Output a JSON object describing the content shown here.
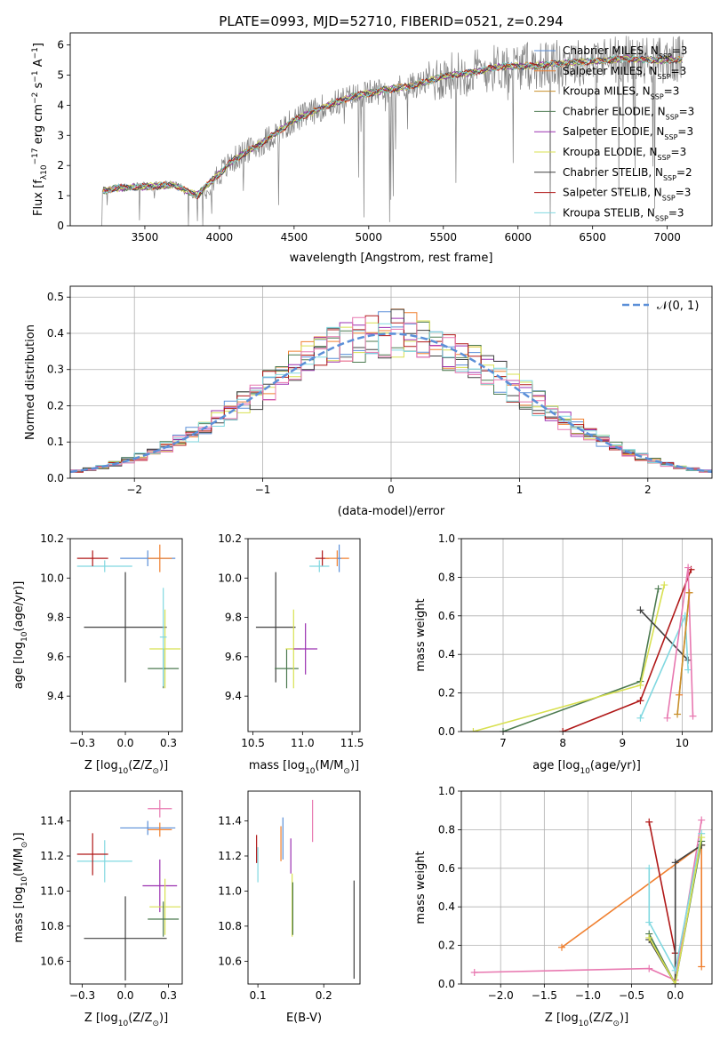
{
  "figure": {
    "title": "PLATE=0993, MJD=52710, FIBERID=0521, z=0.294"
  },
  "chart_data": [
    {
      "id": "spectrum",
      "type": "line",
      "xlabel": "wavelength [Angstrom, rest frame]",
      "ylabel": "Flux [f",
      "ylabel_parts": [
        "Flux [f",
        "λ",
        "10",
        "−17",
        " erg cm",
        "−2",
        " s",
        "−1",
        " A",
        "−1",
        "]"
      ],
      "xlim": [
        3000,
        7300
      ],
      "ylim": [
        0,
        6.4
      ],
      "xticks": [
        3500,
        4000,
        4500,
        5000,
        5500,
        6000,
        6500,
        7000
      ],
      "yticks": [
        0,
        1,
        2,
        3,
        4,
        5,
        6
      ],
      "observed_color": "#808080",
      "continuum_anchor": {
        "x": [
          3220,
          3300,
          3500,
          3700,
          3850,
          3950,
          4100,
          4300,
          4500,
          4700,
          4900,
          5100,
          5300,
          5500,
          5700,
          5900,
          6100,
          6300,
          6500,
          6700,
          6900,
          7100
        ],
        "y": [
          1.15,
          1.25,
          1.3,
          1.35,
          1.0,
          1.5,
          2.2,
          2.8,
          3.5,
          3.95,
          4.3,
          4.5,
          4.65,
          4.95,
          5.1,
          5.3,
          5.3,
          5.4,
          5.45,
          5.55,
          5.5,
          5.5
        ]
      },
      "series": [
        {
          "name": "Chabrier MILES",
          "nssp": "3",
          "color": "#5b8fd8"
        },
        {
          "name": "Salpeter MILES",
          "nssp": "3",
          "color": "#f08030"
        },
        {
          "name": "Kroupa MILES",
          "nssp": "3",
          "color": "#c8902c"
        },
        {
          "name": "Chabrier ELODIE",
          "nssp": "3",
          "color": "#4c7a50"
        },
        {
          "name": "Salpeter ELODIE",
          "nssp": "3",
          "color": "#9b30b0"
        },
        {
          "name": "Kroupa ELODIE",
          "nssp": "3",
          "color": "#d8e050"
        },
        {
          "name": "Chabrier STELIB",
          "nssp": "2",
          "color": "#404040"
        },
        {
          "name": "Salpeter STELIB",
          "nssp": "3",
          "color": "#b01818"
        },
        {
          "name": "Kroupa STELIB",
          "nssp": "3",
          "color": "#80d8e0"
        }
      ],
      "legend_loc": "lower-right"
    },
    {
      "id": "residuals",
      "type": "line",
      "xlabel": "(data-model)/error",
      "ylabel": "Normed distribution",
      "xlim": [
        -2.5,
        2.5
      ],
      "ylim": [
        0,
        0.53
      ],
      "xticks": [
        -2,
        -1,
        0,
        1,
        2
      ],
      "yticks": [
        0,
        0.1,
        0.2,
        0.3,
        0.4,
        0.5
      ],
      "grid": true,
      "legend_label": "𝒩(0, 1)",
      "legend_loc": "upper-right",
      "gaussian_color": "#5b8fd8",
      "hist_colors": [
        "#5b8fd8",
        "#f08030",
        "#4c7a50",
        "#9b30b0",
        "#d8e050",
        "#404040",
        "#b01818",
        "#80d8e0",
        "#e878b0"
      ]
    },
    {
      "id": "z-age",
      "type": "scatter",
      "xlabel": "Z [log",
      "xlabel_parts": [
        "Z [log",
        "10",
        "(Z/Z",
        "⊙",
        ")]"
      ],
      "ylabel_parts": [
        "age  [log",
        "10",
        "(age/yr)]"
      ],
      "xlim": [
        -0.32,
        0.33
      ],
      "ylim": [
        9.22,
        10.2
      ],
      "xticks": [
        -0.25,
        0.0,
        0.25
      ],
      "yticks": [
        9.4,
        9.6,
        9.8,
        10.0,
        10.2
      ],
      "points": [
        {
          "x": -0.12,
          "xerr": 0.16,
          "y": 10.06,
          "yerr": 0.03,
          "color": "#80d8e0"
        },
        {
          "x": -0.19,
          "xerr": 0.09,
          "y": 10.1,
          "yerr": 0.04,
          "color": "#b01818"
        },
        {
          "x": 0.13,
          "xerr": 0.16,
          "y": 10.1,
          "yerr": 0.04,
          "color": "#5b8fd8"
        },
        {
          "x": 0.2,
          "xerr": 0.07,
          "y": 10.1,
          "yerr": 0.07,
          "color": "#f08030"
        },
        {
          "x": 0.0,
          "xerr": 0.24,
          "y": 9.75,
          "yerr": 0.28,
          "color": "#404040"
        },
        {
          "x": 0.23,
          "xerr": 0.09,
          "y": 9.64,
          "yerr": 0.2,
          "color": "#d8e050"
        },
        {
          "x": 0.22,
          "xerr": 0.09,
          "y": 9.54,
          "yerr": 0.1,
          "color": "#4c7a50"
        },
        {
          "x": 0.22,
          "xerr": 0.02,
          "y": 9.7,
          "yerr": 0.25,
          "color": "#80d8e0"
        }
      ]
    },
    {
      "id": "mass-age",
      "type": "scatter",
      "xlabel_parts": [
        "mass [log",
        "10",
        "(M/M",
        "⊙",
        ")]"
      ],
      "xlim": [
        10.45,
        11.58
      ],
      "ylim": [
        9.22,
        10.2
      ],
      "xticks": [
        10.5,
        11.0,
        11.5
      ],
      "yticks": [
        9.4,
        9.6,
        9.8,
        10.0,
        10.2
      ],
      "points": [
        {
          "x": 10.73,
          "xerr": 0.2,
          "y": 9.75,
          "yerr": 0.28,
          "color": "#404040"
        },
        {
          "x": 10.84,
          "xerr": 0.12,
          "y": 9.54,
          "yerr": 0.1,
          "color": "#4c7a50"
        },
        {
          "x": 10.91,
          "xerr": 0.08,
          "y": 9.64,
          "yerr": 0.2,
          "color": "#d8e050"
        },
        {
          "x": 11.03,
          "xerr": 0.12,
          "y": 9.64,
          "yerr": 0.13,
          "color": "#9b30b0"
        },
        {
          "x": 11.2,
          "xerr": 0.07,
          "y": 10.1,
          "yerr": 0.04,
          "color": "#b01818"
        },
        {
          "x": 11.35,
          "xerr": 0.12,
          "y": 10.1,
          "yerr": 0.04,
          "color": "#f08030"
        },
        {
          "x": 11.37,
          "xerr": 0.02,
          "y": 10.1,
          "yerr": 0.07,
          "color": "#5b8fd8"
        },
        {
          "x": 11.17,
          "xerr": 0.1,
          "y": 10.06,
          "yerr": 0.03,
          "color": "#80d8e0"
        }
      ]
    },
    {
      "id": "age-massweight",
      "type": "line",
      "xlabel_parts": [
        "age  [log",
        "10",
        "(age/yr)]"
      ],
      "ylabel": "mass weight",
      "xlim": [
        6.3,
        10.5
      ],
      "ylim": [
        0,
        1.0
      ],
      "xticks": [
        7,
        8,
        9,
        10
      ],
      "yticks": [
        0.0,
        0.2,
        0.4,
        0.6,
        0.8,
        1.0
      ],
      "grid": true,
      "series": [
        {
          "color": "#4c7a50",
          "x": [
            7.0,
            9.3,
            9.6
          ],
          "y": [
            0.0,
            0.26,
            0.74
          ]
        },
        {
          "color": "#d8e050",
          "x": [
            6.5,
            9.3,
            9.7
          ],
          "y": [
            0.0,
            0.24,
            0.76
          ]
        },
        {
          "color": "#404040",
          "x": [
            9.3,
            10.1
          ],
          "y": [
            0.63,
            0.37
          ]
        },
        {
          "color": "#b01818",
          "x": [
            8.0,
            9.3,
            10.15
          ],
          "y": [
            0.0,
            0.16,
            0.84
          ]
        },
        {
          "color": "#80d8e0",
          "x": [
            9.3,
            10.05,
            10.1
          ],
          "y": [
            0.07,
            0.6,
            0.32
          ]
        },
        {
          "color": "#e878b0",
          "x": [
            9.75,
            10.1,
            10.18
          ],
          "y": [
            0.07,
            0.85,
            0.08
          ]
        },
        {
          "color": "#f08030",
          "x": [
            9.95,
            10.12
          ],
          "y": [
            0.19,
            0.72
          ]
        },
        {
          "color": "#c8902c",
          "x": [
            9.92,
            10.12
          ],
          "y": [
            0.09,
            0.72
          ]
        }
      ]
    },
    {
      "id": "z-mass",
      "type": "scatter",
      "xlabel_parts": [
        "Z [log",
        "10",
        "(Z/Z",
        "⊙",
        ")]"
      ],
      "ylabel_parts": [
        "mass [log",
        "10",
        "(M/M",
        "⊙",
        ")]"
      ],
      "xlim": [
        -0.32,
        0.33
      ],
      "ylim": [
        10.47,
        11.57
      ],
      "xticks": [
        -0.25,
        0.0,
        0.25
      ],
      "yticks": [
        10.6,
        10.8,
        11.0,
        11.2,
        11.4
      ],
      "points": [
        {
          "x": -0.12,
          "xerr": 0.16,
          "y": 11.17,
          "yerr": 0.12,
          "color": "#80d8e0"
        },
        {
          "x": -0.19,
          "xerr": 0.09,
          "y": 11.21,
          "yerr": 0.12,
          "color": "#b01818"
        },
        {
          "x": 0.0,
          "xerr": 0.24,
          "y": 10.73,
          "yerr": 0.24,
          "color": "#404040"
        },
        {
          "x": 0.13,
          "xerr": 0.16,
          "y": 11.36,
          "yerr": 0.04,
          "color": "#5b8fd8"
        },
        {
          "x": 0.2,
          "xerr": 0.07,
          "y": 11.35,
          "yerr": 0.04,
          "color": "#f08030"
        },
        {
          "x": 0.2,
          "xerr": 0.07,
          "y": 11.47,
          "yerr": 0.05,
          "color": "#e878b0"
        },
        {
          "x": 0.2,
          "xerr": 0.1,
          "y": 11.03,
          "yerr": 0.15,
          "color": "#9b30b0"
        },
        {
          "x": 0.23,
          "xerr": 0.09,
          "y": 10.91,
          "yerr": 0.16,
          "color": "#d8e050"
        },
        {
          "x": 0.22,
          "xerr": 0.09,
          "y": 10.84,
          "yerr": 0.1,
          "color": "#4c7a50"
        }
      ]
    },
    {
      "id": "ebv-mass",
      "type": "scatter",
      "xlabel": "E(B-V)",
      "xlim": [
        0.085,
        0.255
      ],
      "ylim": [
        10.47,
        11.57
      ],
      "xticks": [
        0.1,
        0.2
      ],
      "yticks": [
        10.6,
        10.8,
        11.0,
        11.2,
        11.4
      ],
      "points": [
        {
          "x": 0.098,
          "xerr": 0.0,
          "y": 11.24,
          "yerr": 0.08,
          "color": "#b01818"
        },
        {
          "x": 0.1,
          "xerr": 0.0,
          "y": 11.15,
          "yerr": 0.1,
          "color": "#80d8e0"
        },
        {
          "x": 0.135,
          "xerr": 0.0,
          "y": 11.27,
          "yerr": 0.1,
          "color": "#f08030"
        },
        {
          "x": 0.138,
          "xerr": 0.0,
          "y": 11.3,
          "yerr": 0.12,
          "color": "#5b8fd8"
        },
        {
          "x": 0.15,
          "xerr": 0.0,
          "y": 11.2,
          "yerr": 0.1,
          "color": "#9b30b0"
        },
        {
          "x": 0.152,
          "xerr": 0.0,
          "y": 10.92,
          "yerr": 0.18,
          "color": "#d8e050"
        },
        {
          "x": 0.153,
          "xerr": 0.0,
          "y": 10.9,
          "yerr": 0.15,
          "color": "#4c7a50"
        },
        {
          "x": 0.183,
          "xerr": 0.0,
          "y": 11.4,
          "yerr": 0.12,
          "color": "#e878b0"
        },
        {
          "x": 0.246,
          "xerr": 0.0,
          "y": 10.78,
          "yerr": 0.28,
          "color": "#404040"
        }
      ]
    },
    {
      "id": "z-massweight",
      "type": "line",
      "xlabel_parts": [
        "Z [log",
        "10",
        "(Z/Z",
        "⊙",
        ")]"
      ],
      "ylabel": "mass weight",
      "xlim": [
        -2.45,
        0.42
      ],
      "ylim": [
        0,
        1.0
      ],
      "xticks": [
        -2.0,
        -1.5,
        -1.0,
        -0.5,
        0.0
      ],
      "yticks": [
        0.0,
        0.2,
        0.4,
        0.6,
        0.8,
        1.0
      ],
      "grid": true,
      "series": [
        {
          "color": "#e878b0",
          "x": [
            -2.3,
            -0.3,
            0.0,
            0.3
          ],
          "y": [
            0.06,
            0.08,
            0.02,
            0.85
          ]
        },
        {
          "color": "#f08030",
          "x": [
            -1.3,
            0.3,
            0.3
          ],
          "y": [
            0.19,
            0.72,
            0.09
          ]
        },
        {
          "color": "#b01818",
          "x": [
            -0.3,
            0.0,
            0.0
          ],
          "y": [
            0.84,
            0.16,
            0.0
          ]
        },
        {
          "color": "#404040",
          "x": [
            -0.3,
            0.0,
            0.0,
            0.3
          ],
          "y": [
            0.23,
            0.0,
            0.63,
            0.72
          ]
        },
        {
          "color": "#80d8e0",
          "x": [
            -0.3,
            -0.3,
            0.0,
            0.3
          ],
          "y": [
            0.6,
            0.32,
            0.07,
            0.78
          ]
        },
        {
          "color": "#4c7a50",
          "x": [
            -0.3,
            0.0,
            0.3
          ],
          "y": [
            0.26,
            0.0,
            0.74
          ]
        },
        {
          "color": "#d8e050",
          "x": [
            -0.3,
            0.0,
            0.3
          ],
          "y": [
            0.24,
            0.0,
            0.76
          ]
        }
      ]
    }
  ]
}
